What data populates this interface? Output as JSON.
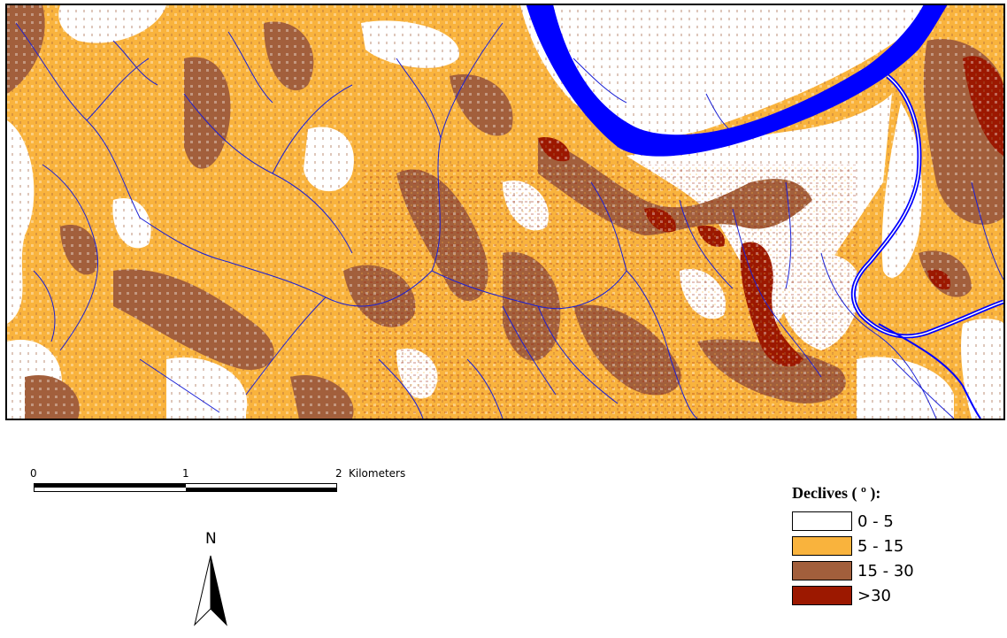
{
  "map": {
    "colors": {
      "class_0_5": "#ffffff",
      "class_5_15": "#f9b33d",
      "class_15_30": "#a25f3c",
      "class_gt30": "#9c1800",
      "river": "#0000ff",
      "stream": "#1a1fd4"
    }
  },
  "scale": {
    "tick_0": "0",
    "tick_1": "1",
    "tick_2": "2",
    "unit": "Kilometers"
  },
  "north": {
    "label": "N"
  },
  "legend": {
    "title": "Declives ( º ):",
    "classes": [
      {
        "label": "0 - 5",
        "color": "#ffffff"
      },
      {
        "label": "5 - 15",
        "color": "#f9b33d"
      },
      {
        "label": "15 - 30",
        "color": "#a25f3c"
      },
      {
        "label": ">30",
        "color": "#9c1800"
      }
    ]
  }
}
